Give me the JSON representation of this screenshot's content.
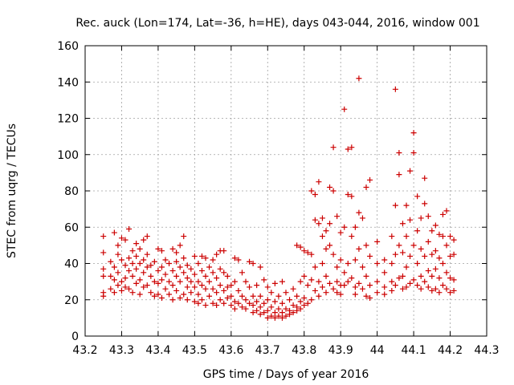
{
  "chart_data": {
    "type": "scatter",
    "title": "Rec. auck (Lon=174, Lat=-36, h=HE), days 043-044, 2016, window 001",
    "xlabel": "GPS time / Days of year 2016",
    "ylabel": "STEC from uqrg / TECUs",
    "xlim": [
      43.2,
      44.3
    ],
    "ylim": [
      0,
      160
    ],
    "xticks": [
      "43.2",
      "43.3",
      "43.4",
      "43.5",
      "43.6",
      "43.7",
      "43.8",
      "43.9",
      "44",
      "44.1",
      "44.2",
      "44.3"
    ],
    "yticks": [
      "0",
      "20",
      "40",
      "60",
      "80",
      "100",
      "120",
      "140",
      "160"
    ],
    "grid": true,
    "marker": "+",
    "color": "#cc0000",
    "points": [
      [
        43.25,
        55
      ],
      [
        43.25,
        46
      ],
      [
        43.25,
        37
      ],
      [
        43.25,
        33
      ],
      [
        43.25,
        24
      ],
      [
        43.25,
        22
      ],
      [
        43.27,
        41
      ],
      [
        43.27,
        33
      ],
      [
        43.27,
        26
      ],
      [
        43.28,
        57
      ],
      [
        43.28,
        38
      ],
      [
        43.28,
        31
      ],
      [
        43.28,
        24
      ],
      [
        43.29,
        50
      ],
      [
        43.29,
        45
      ],
      [
        43.29,
        35
      ],
      [
        43.29,
        28
      ],
      [
        43.3,
        54
      ],
      [
        43.3,
        42
      ],
      [
        43.3,
        30
      ],
      [
        43.3,
        25
      ],
      [
        43.31,
        53
      ],
      [
        43.31,
        39
      ],
      [
        43.31,
        32
      ],
      [
        43.31,
        27
      ],
      [
        43.32,
        59
      ],
      [
        43.32,
        43
      ],
      [
        43.32,
        36
      ],
      [
        43.32,
        26
      ],
      [
        43.33,
        47
      ],
      [
        43.33,
        40
      ],
      [
        43.33,
        33
      ],
      [
        43.33,
        24
      ],
      [
        43.34,
        51
      ],
      [
        43.34,
        44
      ],
      [
        43.34,
        37
      ],
      [
        43.34,
        29
      ],
      [
        43.35,
        48
      ],
      [
        43.35,
        40
      ],
      [
        43.35,
        31
      ],
      [
        43.35,
        23
      ],
      [
        43.36,
        53
      ],
      [
        43.36,
        42
      ],
      [
        43.36,
        35
      ],
      [
        43.36,
        27
      ],
      [
        43.37,
        55
      ],
      [
        43.37,
        45
      ],
      [
        43.37,
        38
      ],
      [
        43.37,
        28
      ],
      [
        43.38,
        39
      ],
      [
        43.38,
        33
      ],
      [
        43.38,
        24
      ],
      [
        43.39,
        41
      ],
      [
        43.39,
        30
      ],
      [
        43.39,
        22
      ],
      [
        43.4,
        48
      ],
      [
        43.4,
        36
      ],
      [
        43.4,
        29
      ],
      [
        43.4,
        23
      ],
      [
        43.41,
        47
      ],
      [
        43.41,
        38
      ],
      [
        43.41,
        31
      ],
      [
        43.41,
        21
      ],
      [
        43.42,
        42
      ],
      [
        43.42,
        34
      ],
      [
        43.42,
        26
      ],
      [
        43.43,
        40
      ],
      [
        43.43,
        30
      ],
      [
        43.43,
        23
      ],
      [
        43.44,
        48
      ],
      [
        43.44,
        36
      ],
      [
        43.44,
        28
      ],
      [
        43.44,
        20
      ],
      [
        43.45,
        46
      ],
      [
        43.45,
        41
      ],
      [
        43.45,
        33
      ],
      [
        43.45,
        25
      ],
      [
        43.46,
        50
      ],
      [
        43.46,
        38
      ],
      [
        43.46,
        30
      ],
      [
        43.46,
        21
      ],
      [
        43.47,
        55
      ],
      [
        43.47,
        43
      ],
      [
        43.47,
        35
      ],
      [
        43.47,
        23
      ],
      [
        43.48,
        39
      ],
      [
        43.48,
        32
      ],
      [
        43.48,
        27
      ],
      [
        43.48,
        20
      ],
      [
        43.49,
        37
      ],
      [
        43.49,
        30
      ],
      [
        43.49,
        24
      ],
      [
        43.5,
        44
      ],
      [
        43.5,
        34
      ],
      [
        43.5,
        27
      ],
      [
        43.5,
        19
      ],
      [
        43.51,
        40
      ],
      [
        43.51,
        30
      ],
      [
        43.51,
        23
      ],
      [
        43.51,
        18
      ],
      [
        43.52,
        44
      ],
      [
        43.52,
        36
      ],
      [
        43.52,
        28
      ],
      [
        43.52,
        20
      ],
      [
        43.53,
        43
      ],
      [
        43.53,
        33
      ],
      [
        43.53,
        26
      ],
      [
        43.53,
        17
      ],
      [
        43.54,
        38
      ],
      [
        43.54,
        30
      ],
      [
        43.54,
        22
      ],
      [
        43.55,
        42
      ],
      [
        43.55,
        35
      ],
      [
        43.55,
        26
      ],
      [
        43.55,
        18
      ],
      [
        43.56,
        45
      ],
      [
        43.56,
        32
      ],
      [
        43.56,
        24
      ],
      [
        43.56,
        17
      ],
      [
        43.57,
        47
      ],
      [
        43.57,
        37
      ],
      [
        43.57,
        28
      ],
      [
        43.57,
        20
      ],
      [
        43.58,
        47
      ],
      [
        43.58,
        35
      ],
      [
        43.58,
        25
      ],
      [
        43.58,
        18
      ],
      [
        43.59,
        33
      ],
      [
        43.59,
        27
      ],
      [
        43.59,
        21
      ],
      [
        43.6,
        28
      ],
      [
        43.6,
        22
      ],
      [
        43.6,
        17
      ],
      [
        43.61,
        43
      ],
      [
        43.61,
        30
      ],
      [
        43.61,
        19
      ],
      [
        43.61,
        15
      ],
      [
        43.62,
        42
      ],
      [
        43.62,
        25
      ],
      [
        43.62,
        18
      ],
      [
        43.63,
        35
      ],
      [
        43.63,
        22
      ],
      [
        43.63,
        16
      ],
      [
        43.64,
        30
      ],
      [
        43.64,
        20
      ],
      [
        43.64,
        15
      ],
      [
        43.65,
        41
      ],
      [
        43.65,
        27
      ],
      [
        43.65,
        18
      ],
      [
        43.66,
        40
      ],
      [
        43.66,
        22
      ],
      [
        43.66,
        17
      ],
      [
        43.66,
        13
      ],
      [
        43.67,
        28
      ],
      [
        43.67,
        19
      ],
      [
        43.67,
        14
      ],
      [
        43.68,
        38
      ],
      [
        43.68,
        22
      ],
      [
        43.68,
        16
      ],
      [
        43.68,
        12
      ],
      [
        43.69,
        31
      ],
      [
        43.69,
        18
      ],
      [
        43.69,
        13
      ],
      [
        43.7,
        27
      ],
      [
        43.7,
        20
      ],
      [
        43.7,
        14
      ],
      [
        43.7,
        10
      ],
      [
        43.71,
        24
      ],
      [
        43.71,
        16
      ],
      [
        43.71,
        11
      ],
      [
        43.72,
        29
      ],
      [
        43.72,
        19
      ],
      [
        43.72,
        13
      ],
      [
        43.72,
        10
      ],
      [
        43.73,
        22
      ],
      [
        43.73,
        15
      ],
      [
        43.73,
        11
      ],
      [
        43.74,
        30
      ],
      [
        43.74,
        18
      ],
      [
        43.74,
        13
      ],
      [
        43.74,
        10
      ],
      [
        43.75,
        24
      ],
      [
        43.75,
        15
      ],
      [
        43.75,
        11
      ],
      [
        43.76,
        20
      ],
      [
        43.76,
        14
      ],
      [
        43.76,
        12
      ],
      [
        43.77,
        26
      ],
      [
        43.77,
        17
      ],
      [
        43.77,
        13
      ],
      [
        43.78,
        50
      ],
      [
        43.78,
        22
      ],
      [
        43.78,
        16
      ],
      [
        43.78,
        14
      ],
      [
        43.79,
        49
      ],
      [
        43.79,
        30
      ],
      [
        43.79,
        19
      ],
      [
        43.79,
        15
      ],
      [
        43.8,
        47
      ],
      [
        43.8,
        33
      ],
      [
        43.8,
        21
      ],
      [
        43.8,
        17
      ],
      [
        43.81,
        46
      ],
      [
        43.81,
        28
      ],
      [
        43.81,
        18
      ],
      [
        43.82,
        80
      ],
      [
        43.82,
        45
      ],
      [
        43.82,
        31
      ],
      [
        43.82,
        20
      ],
      [
        43.83,
        78
      ],
      [
        43.83,
        64
      ],
      [
        43.83,
        38
      ],
      [
        43.83,
        25
      ],
      [
        43.84,
        85
      ],
      [
        43.84,
        62
      ],
      [
        43.84,
        30
      ],
      [
        43.84,
        22
      ],
      [
        43.85,
        65
      ],
      [
        43.85,
        55
      ],
      [
        43.85,
        40
      ],
      [
        43.85,
        27
      ],
      [
        43.86,
        58
      ],
      [
        43.86,
        48
      ],
      [
        43.86,
        33
      ],
      [
        43.86,
        24
      ],
      [
        43.87,
        82
      ],
      [
        43.87,
        62
      ],
      [
        43.87,
        50
      ],
      [
        43.87,
        29
      ],
      [
        43.88,
        104
      ],
      [
        43.88,
        80
      ],
      [
        43.88,
        45
      ],
      [
        43.88,
        26
      ],
      [
        43.89,
        66
      ],
      [
        43.89,
        38
      ],
      [
        43.89,
        30
      ],
      [
        43.89,
        24
      ],
      [
        43.9,
        57
      ],
      [
        43.9,
        42
      ],
      [
        43.9,
        28
      ],
      [
        43.9,
        23
      ],
      [
        43.91,
        125
      ],
      [
        43.91,
        60
      ],
      [
        43.91,
        35
      ],
      [
        43.91,
        28
      ],
      [
        43.92,
        103
      ],
      [
        43.92,
        78
      ],
      [
        43.92,
        40
      ],
      [
        43.92,
        30
      ],
      [
        43.93,
        104
      ],
      [
        43.93,
        77
      ],
      [
        43.93,
        55
      ],
      [
        43.93,
        32
      ],
      [
        43.94,
        60
      ],
      [
        43.94,
        42
      ],
      [
        43.94,
        27
      ],
      [
        43.94,
        23
      ],
      [
        43.95,
        142
      ],
      [
        43.95,
        68
      ],
      [
        43.95,
        48
      ],
      [
        43.95,
        29
      ],
      [
        43.96,
        65
      ],
      [
        43.96,
        38
      ],
      [
        43.96,
        26
      ],
      [
        43.97,
        82
      ],
      [
        43.97,
        50
      ],
      [
        43.97,
        33
      ],
      [
        43.97,
        22
      ],
      [
        43.98,
        86
      ],
      [
        43.98,
        44
      ],
      [
        43.98,
        28
      ],
      [
        43.98,
        21
      ],
      [
        44.0,
        52
      ],
      [
        44.0,
        40
      ],
      [
        44.0,
        30
      ],
      [
        44.0,
        24
      ],
      [
        44.02,
        42
      ],
      [
        44.02,
        35
      ],
      [
        44.02,
        27
      ],
      [
        44.02,
        23
      ],
      [
        44.04,
        55
      ],
      [
        44.04,
        40
      ],
      [
        44.04,
        30
      ],
      [
        44.04,
        25
      ],
      [
        44.05,
        136
      ],
      [
        44.05,
        72
      ],
      [
        44.05,
        45
      ],
      [
        44.05,
        28
      ],
      [
        44.06,
        101
      ],
      [
        44.06,
        89
      ],
      [
        44.06,
        50
      ],
      [
        44.06,
        32
      ],
      [
        44.07,
        62
      ],
      [
        44.07,
        46
      ],
      [
        44.07,
        33
      ],
      [
        44.07,
        26
      ],
      [
        44.08,
        72
      ],
      [
        44.08,
        55
      ],
      [
        44.08,
        38
      ],
      [
        44.08,
        27
      ],
      [
        44.09,
        91
      ],
      [
        44.09,
        64
      ],
      [
        44.09,
        44
      ],
      [
        44.09,
        29
      ],
      [
        44.1,
        112
      ],
      [
        44.1,
        101
      ],
      [
        44.1,
        50
      ],
      [
        44.1,
        31
      ],
      [
        44.11,
        77
      ],
      [
        44.11,
        58
      ],
      [
        44.11,
        40
      ],
      [
        44.11,
        28
      ],
      [
        44.12,
        65
      ],
      [
        44.12,
        48
      ],
      [
        44.12,
        33
      ],
      [
        44.12,
        26
      ],
      [
        44.13,
        87
      ],
      [
        44.13,
        73
      ],
      [
        44.13,
        44
      ],
      [
        44.13,
        30
      ],
      [
        44.14,
        66
      ],
      [
        44.14,
        52
      ],
      [
        44.14,
        36
      ],
      [
        44.14,
        27
      ],
      [
        44.15,
        58
      ],
      [
        44.15,
        45
      ],
      [
        44.15,
        33
      ],
      [
        44.15,
        25
      ],
      [
        44.16,
        61
      ],
      [
        44.16,
        47
      ],
      [
        44.16,
        37
      ],
      [
        44.16,
        26
      ],
      [
        44.17,
        56
      ],
      [
        44.17,
        43
      ],
      [
        44.17,
        32
      ],
      [
        44.17,
        24
      ],
      [
        44.18,
        67
      ],
      [
        44.18,
        55
      ],
      [
        44.18,
        40
      ],
      [
        44.18,
        28
      ],
      [
        44.19,
        69
      ],
      [
        44.19,
        50
      ],
      [
        44.19,
        35
      ],
      [
        44.19,
        26
      ],
      [
        44.2,
        55
      ],
      [
        44.2,
        44
      ],
      [
        44.2,
        32
      ],
      [
        44.2,
        24
      ],
      [
        44.21,
        53
      ],
      [
        44.21,
        45
      ],
      [
        44.21,
        31
      ],
      [
        44.21,
        25
      ]
    ]
  }
}
